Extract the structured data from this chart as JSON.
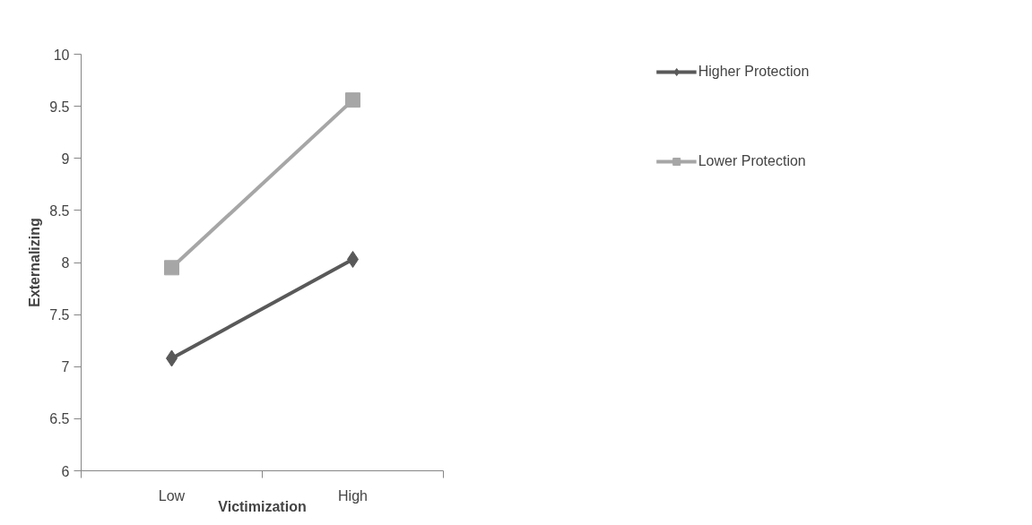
{
  "chart_data": {
    "type": "line",
    "categories": [
      "Low",
      "High"
    ],
    "xlabel": "Victimization",
    "ylabel": "Externalizing",
    "ylim": [
      6,
      10
    ],
    "yticks": [
      6,
      6.5,
      7,
      7.5,
      8,
      8.5,
      9,
      9.5,
      10
    ],
    "grid": false,
    "legend": "right",
    "line_style": "solid",
    "series": [
      {
        "name": "Higher Protection",
        "color": "#595959",
        "marker": "diamond",
        "values": [
          7.08,
          8.03
        ]
      },
      {
        "name": "Lower Protection",
        "color": "#a6a6a6",
        "marker": "square",
        "values": [
          7.95,
          9.56
        ]
      }
    ]
  }
}
